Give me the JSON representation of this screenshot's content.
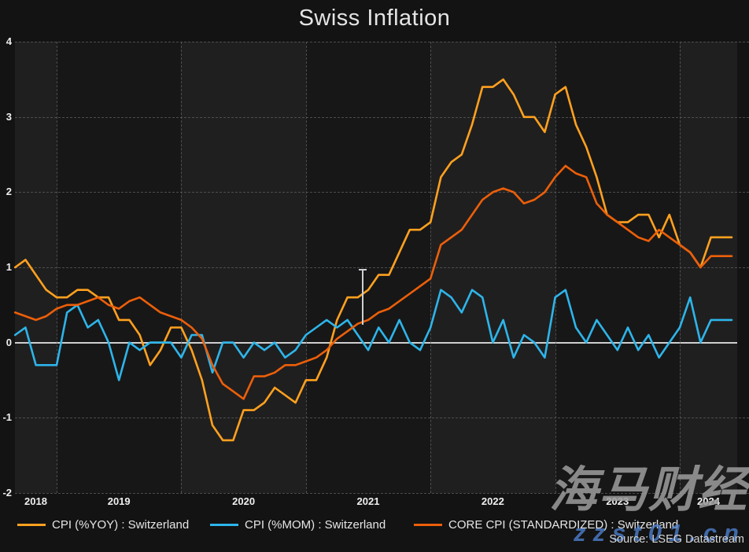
{
  "title": "Swiss Inflation",
  "source": "Source: LSEG Datastream",
  "watermark": {
    "line1": "海马财经",
    "line2": "zzst01.cn"
  },
  "y_axis": {
    "tick_labels": [
      "4",
      "3",
      "2",
      "1",
      "0",
      "-1",
      "-2"
    ],
    "tick_values": [
      4,
      3,
      2,
      1,
      0,
      -1,
      -2
    ]
  },
  "x_axis": {
    "year_labels": [
      "2018",
      "2019",
      "2020",
      "2021",
      "2022",
      "2023",
      "2024"
    ]
  },
  "legend": [
    {
      "label": "CPI (%YOY) : Switzerland",
      "color": "#ffa11f"
    },
    {
      "label": "CPI (%MOM) : Switzerland",
      "color": "#2db5ea"
    },
    {
      "label": "CORE CPI (STANDARDIZED) : Switzerland",
      "color": "#ec5f0a"
    }
  ],
  "chart_data": {
    "type": "line",
    "title": "Swiss Inflation",
    "xlabel": "",
    "ylabel": "",
    "ylim": [
      -2,
      4
    ],
    "y_ticks": [
      4,
      3,
      2,
      1,
      0,
      -1,
      -2
    ],
    "grid": "dashed",
    "legend_position": "bottom",
    "zero_line": true,
    "x_unit": "month",
    "months": [
      "2018-09",
      "2018-10",
      "2018-11",
      "2018-12",
      "2019-01",
      "2019-02",
      "2019-03",
      "2019-04",
      "2019-05",
      "2019-06",
      "2019-07",
      "2019-08",
      "2019-09",
      "2019-10",
      "2019-11",
      "2019-12",
      "2020-01",
      "2020-02",
      "2020-03",
      "2020-04",
      "2020-05",
      "2020-06",
      "2020-07",
      "2020-08",
      "2020-09",
      "2020-10",
      "2020-11",
      "2020-12",
      "2021-01",
      "2021-02",
      "2021-03",
      "2021-04",
      "2021-05",
      "2021-06",
      "2021-07",
      "2021-08",
      "2021-09",
      "2021-10",
      "2021-11",
      "2021-12",
      "2022-01",
      "2022-02",
      "2022-03",
      "2022-04",
      "2022-05",
      "2022-06",
      "2022-07",
      "2022-08",
      "2022-09",
      "2022-10",
      "2022-11",
      "2022-12",
      "2023-01",
      "2023-02",
      "2023-03",
      "2023-04",
      "2023-05",
      "2023-06",
      "2023-07",
      "2023-08",
      "2023-09",
      "2023-10",
      "2023-11",
      "2023-12",
      "2024-01",
      "2024-02",
      "2024-03",
      "2024-04",
      "2024-05",
      "2024-06"
    ],
    "series": [
      {
        "name": "CPI (%YOY) : Switzerland",
        "color": "#ffa11f",
        "values": [
          1.0,
          1.1,
          0.9,
          0.7,
          0.6,
          0.6,
          0.7,
          0.7,
          0.6,
          0.6,
          0.3,
          0.3,
          0.1,
          -0.3,
          -0.1,
          0.2,
          0.2,
          -0.1,
          -0.5,
          -1.1,
          -1.3,
          -1.3,
          -0.9,
          -0.9,
          -0.8,
          -0.6,
          -0.7,
          -0.8,
          -0.5,
          -0.5,
          -0.2,
          0.3,
          0.6,
          0.6,
          0.7,
          0.9,
          0.9,
          1.2,
          1.5,
          1.5,
          1.6,
          2.2,
          2.4,
          2.5,
          2.9,
          3.4,
          3.4,
          3.5,
          3.3,
          3.0,
          3.0,
          2.8,
          3.3,
          3.4,
          2.9,
          2.6,
          2.2,
          1.7,
          1.6,
          1.6,
          1.7,
          1.7,
          1.4,
          1.7,
          1.3,
          1.2,
          1.0,
          1.4,
          1.4,
          1.4
        ]
      },
      {
        "name": "CPI (%MOM) : Switzerland",
        "color": "#2db5ea",
        "values": [
          0.1,
          0.2,
          -0.3,
          -0.3,
          -0.3,
          0.4,
          0.5,
          0.2,
          0.3,
          0.0,
          -0.5,
          0.0,
          -0.1,
          0.0,
          0.0,
          0.0,
          -0.2,
          0.1,
          0.1,
          -0.4,
          0.0,
          0.0,
          -0.2,
          0.0,
          -0.1,
          0.0,
          -0.2,
          -0.1,
          0.1,
          0.2,
          0.3,
          0.2,
          0.3,
          0.1,
          -0.1,
          0.2,
          0.0,
          0.3,
          0.0,
          -0.1,
          0.2,
          0.7,
          0.6,
          0.4,
          0.7,
          0.6,
          0.0,
          0.3,
          -0.2,
          0.1,
          0.0,
          -0.2,
          0.6,
          0.7,
          0.2,
          0.0,
          0.3,
          0.1,
          -0.1,
          0.2,
          -0.1,
          0.1,
          -0.2,
          0.0,
          0.2,
          0.6,
          0.0,
          0.3,
          0.3,
          0.3
        ]
      },
      {
        "name": "CORE CPI (STANDARDIZED) : Switzerland",
        "color": "#ec5f0a",
        "values": [
          0.4,
          0.35,
          0.3,
          0.35,
          0.45,
          0.5,
          0.5,
          0.55,
          0.6,
          0.5,
          0.45,
          0.55,
          0.6,
          0.5,
          0.4,
          0.35,
          0.3,
          0.2,
          0.05,
          -0.3,
          -0.55,
          -0.65,
          -0.75,
          -0.45,
          -0.45,
          -0.4,
          -0.3,
          -0.3,
          -0.25,
          -0.2,
          -0.1,
          0.05,
          0.15,
          0.25,
          0.3,
          0.4,
          0.45,
          0.55,
          0.65,
          0.75,
          0.85,
          1.3,
          1.4,
          1.5,
          1.7,
          1.9,
          2.0,
          2.05,
          2.0,
          1.85,
          1.9,
          2.0,
          2.2,
          2.35,
          2.25,
          2.2,
          1.85,
          1.7,
          1.6,
          1.5,
          1.4,
          1.35,
          1.5,
          1.4,
          1.3,
          1.2,
          1.0,
          1.15,
          1.15,
          1.15
        ]
      }
    ]
  }
}
